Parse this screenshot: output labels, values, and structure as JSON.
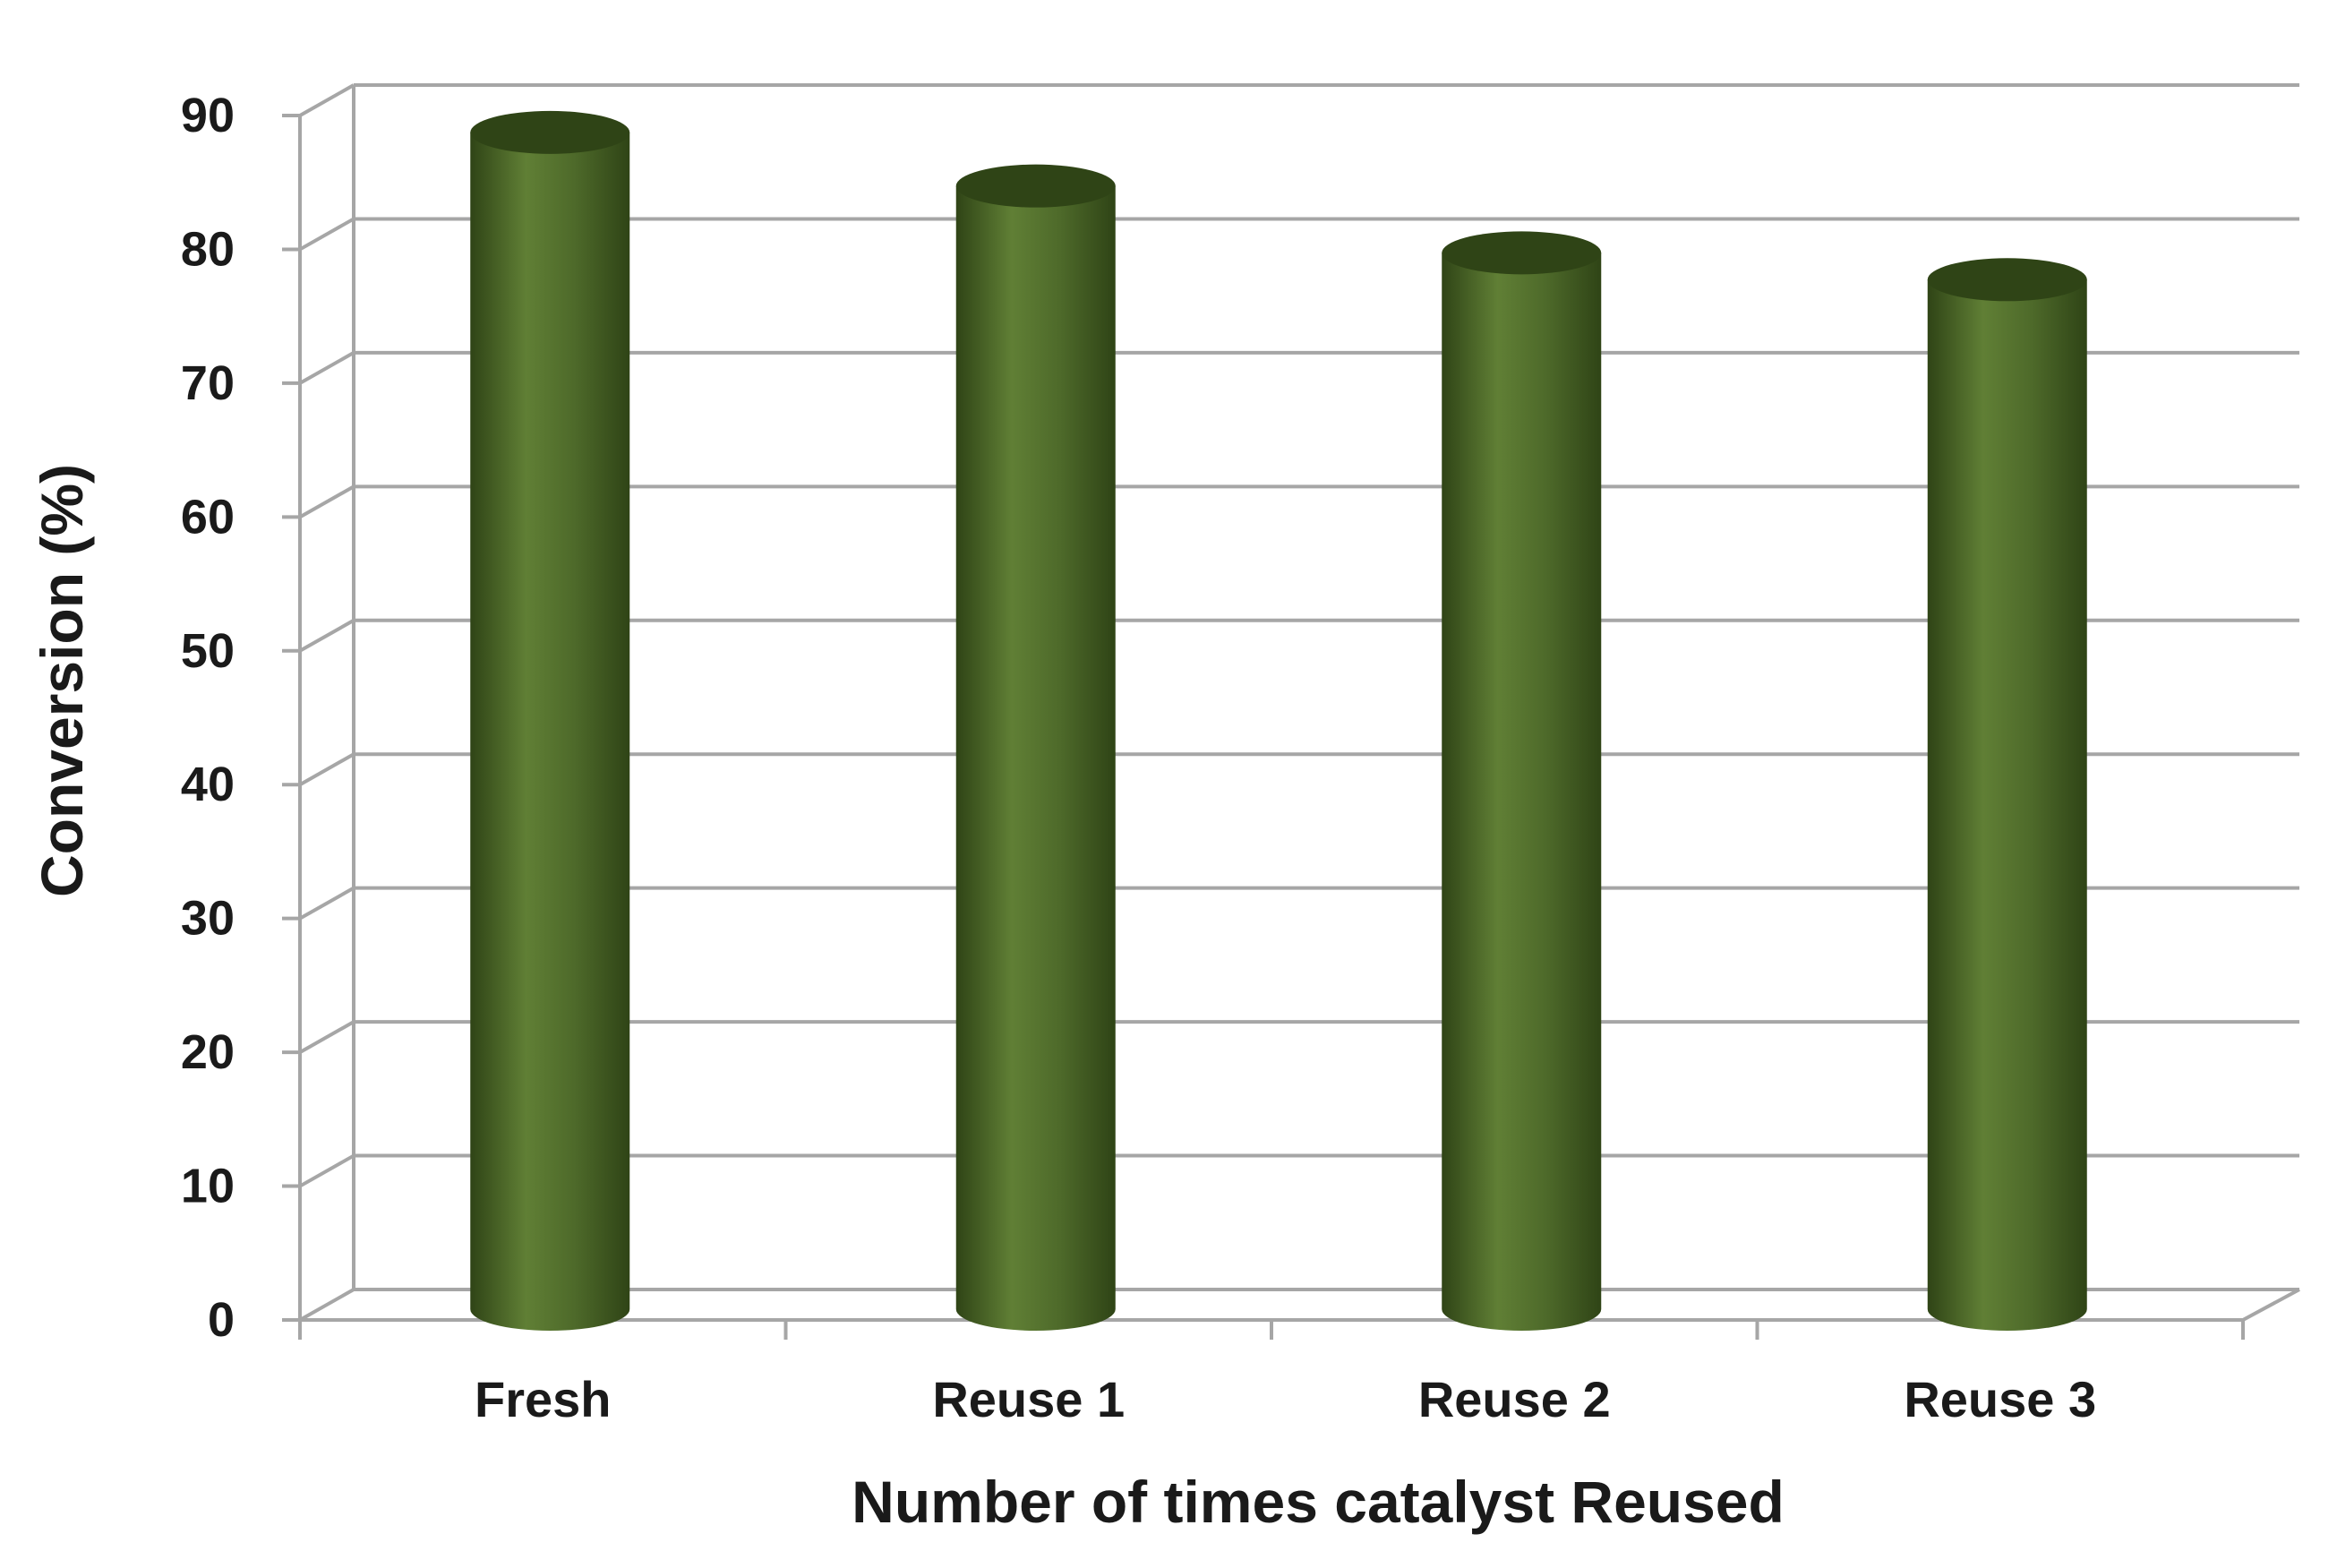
{
  "chart_data": {
    "type": "bar",
    "style": "3d-cylinder",
    "categories": [
      "Fresh",
      "Reuse 1",
      "Reuse 2",
      "Reuse 3"
    ],
    "series": [
      {
        "values": [
          88,
          84,
          79,
          77
        ]
      }
    ],
    "title": "",
    "xlabel": "Number of times catalyst Reused",
    "ylabel": "Conversion (%)",
    "ylim": [
      0,
      90
    ],
    "yticks": [
      0,
      10,
      20,
      30,
      40,
      50,
      60,
      70,
      80,
      90
    ],
    "grid": true,
    "legend": "none",
    "colors": {
      "bar": "#4e6a2a",
      "bar_dark": "#2f4416",
      "bar_light": "#607f35",
      "grid": "#a6a6a6",
      "text": "#1a1a1a"
    }
  }
}
